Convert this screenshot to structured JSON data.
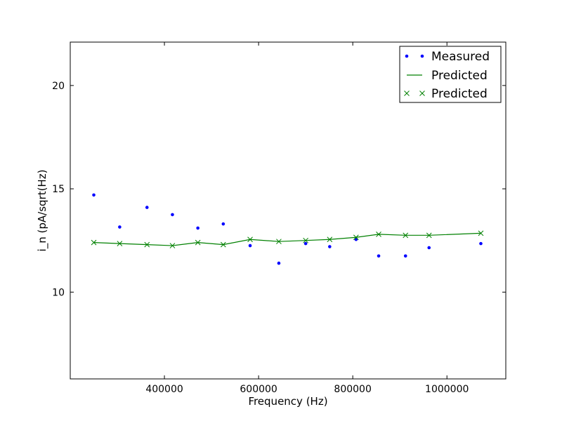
{
  "chart_data": {
    "type": "scatter",
    "xlabel": "Frequency (Hz)",
    "ylabel": "i_n (pA/sqrt(Hz)",
    "xlim": [
      200000,
      1125000
    ],
    "ylim": [
      5.8,
      22.1
    ],
    "xticks": [
      400000,
      600000,
      800000,
      1000000
    ],
    "xtick_labels": [
      "400000",
      "600000",
      "800000",
      "1000000"
    ],
    "yticks": [
      10,
      15,
      20
    ],
    "ytick_labels": [
      "10",
      "15",
      "20"
    ],
    "grid": false,
    "legend_position": "top-right",
    "series": [
      {
        "name": "Measured",
        "kind": "points",
        "color": "#0000ff",
        "x": [
          250000,
          305000,
          363000,
          417000,
          471000,
          525000,
          582000,
          643000,
          700000,
          751000,
          807000,
          855000,
          912000,
          962000,
          1072000
        ],
        "y": [
          14.7,
          13.15,
          14.1,
          13.75,
          13.1,
          13.3,
          12.25,
          11.4,
          12.35,
          12.2,
          12.55,
          11.75,
          11.75,
          12.15,
          12.35
        ]
      },
      {
        "name": "Predicted",
        "kind": "line",
        "color": "#008000",
        "x": [
          250000,
          305000,
          363000,
          417000,
          471000,
          525000,
          582000,
          643000,
          700000,
          751000,
          807000,
          855000,
          912000,
          962000,
          1072000
        ],
        "y": [
          12.4,
          12.35,
          12.3,
          12.25,
          12.4,
          12.3,
          12.55,
          12.45,
          12.5,
          12.55,
          12.65,
          12.8,
          12.75,
          12.75,
          12.85
        ]
      },
      {
        "name": "Predicted",
        "kind": "crosses",
        "color": "#008000",
        "x": [
          250000,
          305000,
          363000,
          417000,
          471000,
          525000,
          582000,
          643000,
          700000,
          751000,
          807000,
          855000,
          912000,
          962000,
          1072000
        ],
        "y": [
          12.4,
          12.35,
          12.3,
          12.25,
          12.4,
          12.3,
          12.55,
          12.45,
          12.5,
          12.55,
          12.65,
          12.8,
          12.75,
          12.75,
          12.85
        ]
      }
    ]
  }
}
